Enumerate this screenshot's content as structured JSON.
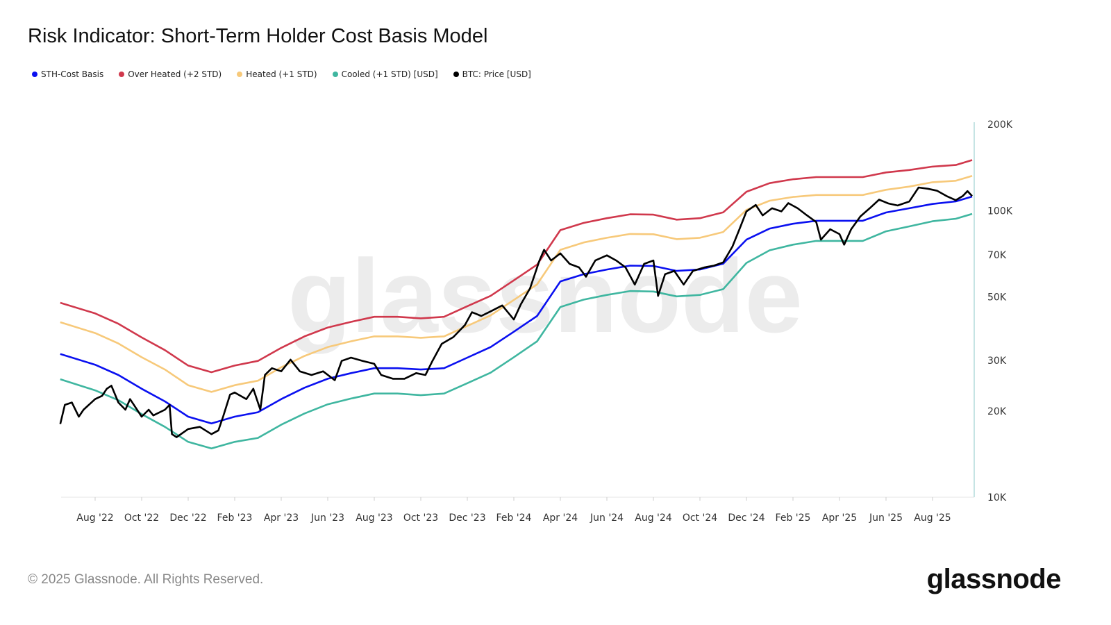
{
  "title": "Risk Indicator: Short-Term Holder Cost Basis Model",
  "watermark": "glassnode",
  "footer": "© 2025 Glassnode. All Rights Reserved.",
  "logo": "glassnode",
  "legend": [
    {
      "label": "STH-Cost Basis",
      "color": "#0a10f0"
    },
    {
      "label": "Over Heated (+2 STD)",
      "color": "#d0384c"
    },
    {
      "label": "Heated (+1 STD)",
      "color": "#f7c97a"
    },
    {
      "label": "Cooled (+1 STD) [USD]",
      "color": "#3fb6a0"
    },
    {
      "label": "BTC: Price [USD]",
      "color": "#000000"
    }
  ],
  "chart_data": {
    "type": "line",
    "title": "Risk Indicator: Short-Term Holder Cost Basis Model",
    "x_unit": "months since Aug 2022",
    "x_ticks": [
      {
        "m": 0,
        "label": "Aug '22"
      },
      {
        "m": 2,
        "label": "Oct '22"
      },
      {
        "m": 4,
        "label": "Dec '22"
      },
      {
        "m": 6,
        "label": "Feb '23"
      },
      {
        "m": 8,
        "label": "Apr '23"
      },
      {
        "m": 10,
        "label": "Jun '23"
      },
      {
        "m": 12,
        "label": "Aug '23"
      },
      {
        "m": 14,
        "label": "Oct '23"
      },
      {
        "m": 16,
        "label": "Dec '23"
      },
      {
        "m": 18,
        "label": "Feb '24"
      },
      {
        "m": 20,
        "label": "Apr '24"
      },
      {
        "m": 22,
        "label": "Jun '24"
      },
      {
        "m": 24,
        "label": "Aug '24"
      },
      {
        "m": 26,
        "label": "Oct '24"
      },
      {
        "m": 28,
        "label": "Dec '24"
      },
      {
        "m": 30,
        "label": "Feb '25"
      },
      {
        "m": 32,
        "label": "Apr '25"
      },
      {
        "m": 34,
        "label": "Jun '25"
      },
      {
        "m": 36,
        "label": "Aug '25"
      }
    ],
    "y_scale": "log",
    "ylim": [
      10000,
      200000
    ],
    "y_ticks": [
      {
        "v": 10000,
        "label": "10K"
      },
      {
        "v": 20000,
        "label": "20K"
      },
      {
        "v": 30000,
        "label": "30K"
      },
      {
        "v": 50000,
        "label": "50K"
      },
      {
        "v": 70000,
        "label": "70K"
      },
      {
        "v": 100000,
        "label": "100K"
      },
      {
        "v": 200000,
        "label": "200K"
      }
    ],
    "x_band_m": [
      -1.5,
      0,
      1,
      2,
      3,
      4,
      5,
      6,
      7,
      8,
      9,
      10,
      11,
      12,
      13,
      14,
      15,
      16,
      17,
      18,
      19,
      20,
      21,
      22,
      23,
      24,
      25,
      26,
      27,
      28,
      29,
      30,
      31,
      32,
      33,
      34,
      35,
      36,
      37,
      37.7
    ],
    "series": [
      {
        "name": "Over Heated (+2 STD)",
        "color": "#d0384c",
        "values_k": [
          47.7,
          43.8,
          40.3,
          36.1,
          32.6,
          28.8,
          27.3,
          28.8,
          29.9,
          33.2,
          36.4,
          39.1,
          40.9,
          42.6,
          42.6,
          42.1,
          42.6,
          46.4,
          50.4,
          57.1,
          64.8,
          85.5,
          90.6,
          94.1,
          97.1,
          96.8,
          93.0,
          94.1,
          98.6,
          116.4,
          124.7,
          128.7,
          130.9,
          130.9,
          130.9,
          135.9,
          138.6,
          142.4,
          144.3,
          150.1
        ]
      },
      {
        "name": "Heated (+1 STD)",
        "color": "#f7c97a",
        "values_k": [
          40.8,
          37.4,
          34.4,
          30.8,
          27.9,
          24.6,
          23.3,
          24.6,
          25.5,
          28.4,
          31.1,
          33.4,
          35.0,
          36.4,
          36.4,
          36.0,
          36.4,
          39.6,
          43.1,
          48.8,
          55.3,
          73.0,
          77.4,
          80.4,
          82.9,
          82.7,
          79.5,
          80.4,
          84.2,
          100.6,
          108.3,
          111.6,
          113.4,
          113.4,
          113.4,
          118.2,
          121.3,
          125.6,
          127.1,
          132.2
        ]
      },
      {
        "name": "Cooled (+1 STD) [USD]",
        "color": "#3fb6a0",
        "values_k": [
          25.8,
          23.6,
          21.8,
          19.5,
          17.6,
          15.6,
          14.8,
          15.6,
          16.1,
          17.9,
          19.6,
          21.1,
          22.1,
          23.0,
          23.0,
          22.7,
          23.0,
          25.0,
          27.2,
          30.8,
          35.0,
          46.1,
          48.9,
          50.8,
          52.4,
          52.2,
          50.2,
          50.8,
          53.2,
          65.7,
          72.7,
          76.1,
          78.4,
          78.4,
          78.4,
          84.7,
          88.1,
          91.8,
          93.7,
          97.4
        ]
      },
      {
        "name": "STH-Cost Basis",
        "color": "#0a10f0",
        "values_k": [
          31.6,
          29.0,
          26.7,
          23.9,
          21.6,
          19.1,
          18.1,
          19.1,
          19.8,
          22.0,
          24.1,
          25.9,
          27.1,
          28.2,
          28.2,
          27.9,
          28.2,
          30.7,
          33.4,
          37.8,
          42.9,
          56.6,
          60.0,
          62.3,
          64.3,
          64.1,
          61.6,
          62.3,
          65.3,
          79.2,
          86.6,
          90.0,
          92.2,
          92.2,
          92.2,
          98.5,
          101.9,
          105.5,
          107.7,
          112.0
        ]
      },
      {
        "name": "BTC: Price [USD]",
        "color": "#000000",
        "x_m": [
          -1.5,
          -1.3,
          -1.0,
          -0.7,
          -0.5,
          0,
          0.3,
          0.5,
          0.7,
          1,
          1.3,
          1.5,
          2,
          2.3,
          2.5,
          3,
          3.2,
          3.3,
          3.5,
          4,
          4.5,
          5,
          5.3,
          5.5,
          5.8,
          6,
          6.5,
          6.8,
          7.1,
          7.3,
          7.6,
          8,
          8.4,
          8.8,
          9.3,
          9.8,
          10.3,
          10.6,
          11,
          11.5,
          12,
          12.3,
          12.8,
          13.3,
          13.8,
          14.2,
          14.5,
          14.9,
          15.4,
          15.9,
          16.2,
          16.6,
          17,
          17.5,
          18,
          18.3,
          18.7,
          19.1,
          19.3,
          19.6,
          20,
          20.4,
          20.8,
          21.1,
          21.5,
          22,
          22.4,
          22.8,
          23.2,
          23.6,
          24,
          24.2,
          24.5,
          24.9,
          25.3,
          25.7,
          26.2,
          26.6,
          27,
          27.4,
          27.7,
          28,
          28.4,
          28.7,
          29.1,
          29.5,
          29.8,
          30.2,
          30.6,
          31,
          31.2,
          31.6,
          32,
          32.2,
          32.5,
          32.9,
          33.3,
          33.7,
          34.1,
          34.5,
          35,
          35.4,
          35.8,
          36.2,
          36.6,
          37,
          37.3,
          37.5,
          37.7
        ],
        "values_k": [
          18.0,
          21.0,
          21.4,
          19.1,
          20.2,
          22.0,
          22.6,
          23.9,
          24.5,
          21.4,
          20.2,
          22.0,
          19.1,
          20.2,
          19.3,
          20.2,
          21.0,
          16.6,
          16.2,
          17.3,
          17.6,
          16.6,
          17.1,
          19.1,
          22.8,
          23.2,
          22.0,
          23.9,
          20.2,
          26.7,
          28.2,
          27.5,
          30.2,
          27.5,
          26.7,
          27.5,
          25.6,
          29.9,
          30.7,
          29.9,
          29.2,
          26.7,
          25.9,
          25.9,
          27.1,
          26.7,
          29.9,
          34.3,
          36.2,
          39.9,
          44.2,
          42.9,
          44.5,
          46.7,
          41.7,
          47.1,
          53.6,
          67.0,
          73.0,
          67.0,
          70.9,
          65.2,
          63.4,
          58.8,
          67.0,
          69.8,
          67.0,
          63.4,
          55.2,
          65.2,
          67.0,
          50.4,
          60.0,
          61.6,
          55.2,
          61.6,
          63.4,
          64.3,
          66.0,
          75.0,
          86.1,
          99.4,
          104.7,
          96.3,
          101.9,
          99.4,
          106.2,
          101.9,
          96.3,
          91.2,
          79.2,
          86.1,
          82.8,
          76.1,
          86.1,
          95.5,
          101.9,
          109.2,
          105.9,
          104.2,
          107.6,
          120.4,
          119.2,
          117.3,
          112.4,
          108.7,
          112.4,
          117.0,
          112.4
        ]
      }
    ]
  }
}
